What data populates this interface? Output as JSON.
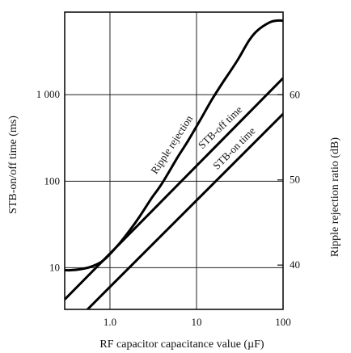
{
  "chart_data": {
    "type": "line",
    "title": "",
    "xlabel": "RF capacitor capacitance value  (µF)",
    "ylabel_left": "STB-on/off time  (ms)",
    "ylabel_right": "Ripple rejection ratio  (dB)",
    "xscale": "log",
    "yscale_left": "log",
    "xlim": [
      0.3,
      100
    ],
    "ylim_left": [
      3.3,
      9000
    ],
    "ylim_right": [
      34.8,
      69.7
    ],
    "x_ticks": [
      1,
      10,
      100
    ],
    "x_tick_labels": [
      "1.0",
      "10",
      "100"
    ],
    "y_left_ticks": [
      10,
      100,
      1000
    ],
    "y_left_tick_labels": [
      "10",
      "100",
      "1 000"
    ],
    "y_right_ticks": [
      40,
      50,
      60
    ],
    "y_right_tick_labels": [
      "40",
      "50",
      "60"
    ],
    "grid": true,
    "series": [
      {
        "name": "Ripple rejection",
        "axis": "right",
        "x": [
          0.3,
          0.35,
          0.45,
          0.6,
          0.8,
          1.0,
          1.3,
          1.7,
          2.2,
          3.0,
          4.0,
          6.0,
          8.0,
          11.0,
          15.0,
          20.0,
          30.0,
          40.0,
          50.0,
          70.0,
          85.0,
          100.0
        ],
        "values": [
          39.4,
          39.4,
          39.5,
          39.8,
          40.4,
          41.3,
          42.6,
          44.1,
          45.7,
          47.8,
          49.6,
          52.6,
          54.6,
          57.0,
          59.4,
          61.4,
          64.1,
          66.3,
          67.5,
          68.5,
          68.7,
          68.7
        ]
      },
      {
        "name": "STB-off time",
        "axis": "left",
        "x": [
          0.3,
          100
        ],
        "values": [
          4.3,
          1550
        ]
      },
      {
        "name": "STB-on time",
        "axis": "left",
        "x": [
          0.55,
          100
        ],
        "values": [
          3.3,
          600
        ]
      }
    ]
  }
}
